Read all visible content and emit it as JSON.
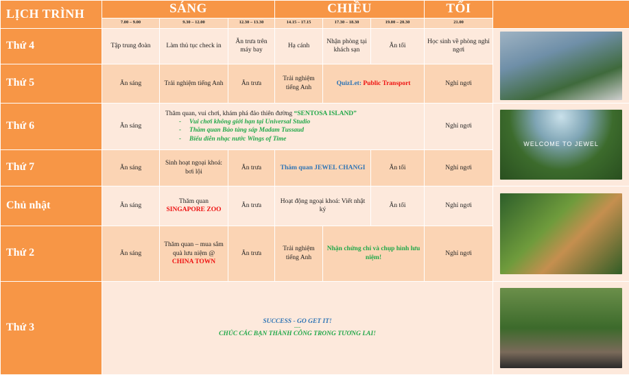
{
  "header": {
    "title": "LỊCH TRÌNH",
    "sang": "SÁNG",
    "chieu": "CHIỀU",
    "toi": "TỐI",
    "times": [
      "7.00 – 9.00",
      "9.30 – 12.00",
      "12.30 – 13.30",
      "14.15 – 17.15",
      "17.30 – 18.30",
      "19.00 – 20.30",
      "21.00"
    ]
  },
  "days": {
    "thu4": {
      "label": "Thứ 4",
      "c1": "Tập trung đoàn",
      "c2": "Làm thủ tục check in",
      "c3": "Ăn trưa trên máy bay",
      "c4": "Hạ cánh",
      "c5": "Nhận phòng tại khách sạn",
      "c6": "Ăn tối",
      "c7": "Học sinh về phòng nghỉ ngơi"
    },
    "thu5": {
      "label": "Thứ 5",
      "c1": "Ăn sáng",
      "c2": "Trải nghiệm tiếng Anh",
      "c3": "Ăn trưa",
      "c4": "Trải nghiệm tiếng Anh",
      "quiz_a": "QuizLet:",
      "quiz_b": "Public Transport",
      "c7": "Nghỉ ngơi"
    },
    "thu6": {
      "label": "Thứ 6",
      "c1": "Ăn sáng",
      "intro": "Thăm quan, vui chơi, khám phá đảo thiên đường",
      "highlight": "“SENTOSA ISLAND”",
      "bullets": [
        "Vui chơi không giới hạn tại Universal Studio",
        "Thăm quan Bảo tàng sáp Madam Tussaud",
        "Biểu diễn nhạc nước Wings of Time"
      ],
      "c7": "Nghỉ ngơi"
    },
    "thu7": {
      "label": "Thứ 7",
      "c1": "Ăn sáng",
      "c2": "Sinh hoạt ngoại khoá: bơi lội",
      "c3": "Ăn trưa",
      "c4": "Thăm quan JEWEL CHANGI",
      "c6": "Ăn tối",
      "c7": "Nghỉ ngơi"
    },
    "cn": {
      "label": "Chủ nhật",
      "c1": "Ăn sáng",
      "c2a": "Thăm quan",
      "c2b": "SINGAPORE ZOO",
      "c3": "Ăn trưa",
      "c4": "Hoạt động ngoại khoá: Viết nhật ký",
      "c6": "Ăn tối",
      "c7": "Nghỉ ngơi"
    },
    "thu2": {
      "label": "Thứ 2",
      "c1": "Ăn sáng",
      "c2a": "Thăm quan – mua sắm quà lưu niệm @",
      "c2b": "CHINA TOWN",
      "c3": "Ăn trưa",
      "c4": "Trải nghiệm tiếng Anh",
      "c5": "Nhận chứng chỉ và chụp hình lưu niệm!",
      "c7": "Nghỉ ngơi"
    },
    "thu3": {
      "label": "Thứ 3",
      "line1": "SUCCESS - GO GET IT!",
      "sep": "----",
      "line2": "CHÚC CÁC BẠN THÀNH CÔNG TRONG TƯƠNG LAI!"
    }
  },
  "photos": {
    "jewel_caption": "WELCOME      TO JEWEL"
  },
  "colors": {
    "orange": "#f79646",
    "light": "#fde9dc",
    "dark": "#fbd4b4"
  }
}
